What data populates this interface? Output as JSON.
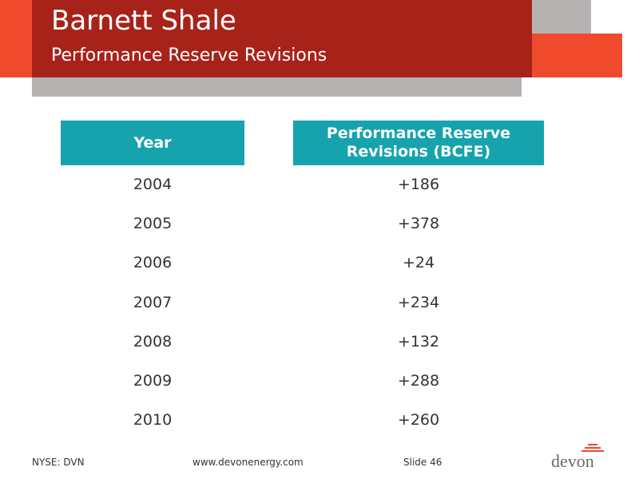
{
  "header": {
    "title": "Barnett Shale",
    "subtitle": "Performance Reserve Revisions"
  },
  "table": {
    "columns": [
      "Year",
      "Performance Reserve Revisions (BCFE)"
    ],
    "rows": [
      {
        "year": "2004",
        "revision": "+186"
      },
      {
        "year": "2005",
        "revision": "+378"
      },
      {
        "year": "2006",
        "revision": "+24"
      },
      {
        "year": "2007",
        "revision": "+234"
      },
      {
        "year": "2008",
        "revision": "+132"
      },
      {
        "year": "2009",
        "revision": "+288"
      },
      {
        "year": "2010",
        "revision": "+260"
      }
    ]
  },
  "footer": {
    "ticker": "NYSE: DVN",
    "website": "www.devonenergy.com",
    "slide": "Slide 46",
    "logo_text": "devon"
  },
  "colors": {
    "header_red": "#a7231a",
    "accent_orange": "#f04a2d",
    "header_gray": "#b7b2b2",
    "table_header_teal": "#16a3ad"
  }
}
